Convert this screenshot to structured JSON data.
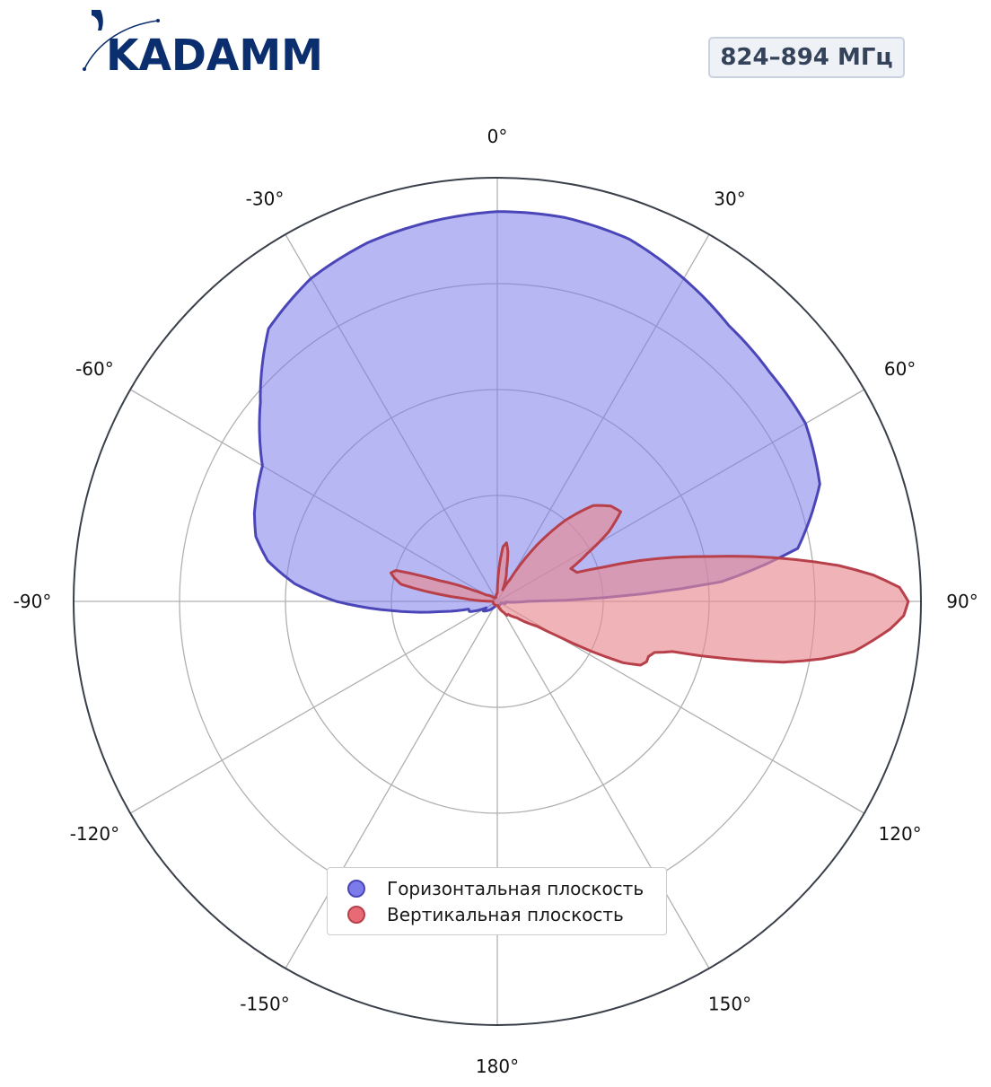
{
  "logo": {
    "text": "KADAMM",
    "color": "#0b2f6e"
  },
  "frequency_badge": "824–894 МГц",
  "colors": {
    "horizontal_fill": "#7b7bea",
    "horizontal_stroke": "#4a46b8",
    "vertical_fill": "#e88a92",
    "vertical_stroke": "#b8404a",
    "grid": "#b0b0b0",
    "outer_ring": "#3a4049"
  },
  "chart_data": {
    "type": "polar",
    "title": "",
    "angular_unit": "deg",
    "zero_location": "top",
    "direction": "clockwise",
    "angle_ticks": [
      {
        "angle": 0,
        "label": "0°"
      },
      {
        "angle": 30,
        "label": "30°"
      },
      {
        "angle": 60,
        "label": "60°"
      },
      {
        "angle": 90,
        "label": "90°"
      },
      {
        "angle": 120,
        "label": "120°"
      },
      {
        "angle": 150,
        "label": "150°"
      },
      {
        "angle": 180,
        "label": "180°"
      },
      {
        "angle": -150,
        "label": "-150°"
      },
      {
        "angle": -120,
        "label": "-120°"
      },
      {
        "angle": -90,
        "label": "-90°"
      },
      {
        "angle": -60,
        "label": "-60°"
      },
      {
        "angle": -30,
        "label": "-30°"
      }
    ],
    "radial_range": [
      0,
      1
    ],
    "radial_grid": [
      0.25,
      0.5,
      0.75,
      1.0
    ],
    "radial_tick_labels": false,
    "grid": true,
    "legend_position": "bottom-center",
    "series": [
      {
        "name": "Горизонтальная плоскость",
        "angles": [
          0,
          10,
          20,
          30,
          40,
          50,
          60,
          70,
          80,
          85,
          90,
          95,
          100,
          105,
          110,
          120,
          140,
          160,
          180,
          200,
          215,
          225,
          235,
          240,
          250,
          255,
          260,
          265,
          270,
          275,
          280,
          285,
          290,
          300,
          310,
          320,
          330,
          340,
          350,
          360
        ],
        "r": [
          0.92,
          0.92,
          0.91,
          0.88,
          0.85,
          0.84,
          0.84,
          0.81,
          0.72,
          0.53,
          0.07,
          0.02,
          0.02,
          0.02,
          0.01,
          0.01,
          0.01,
          0.01,
          0.01,
          0.01,
          0.02,
          0.03,
          0.04,
          0.03,
          0.07,
          0.07,
          0.14,
          0.25,
          0.38,
          0.48,
          0.55,
          0.59,
          0.61,
          0.64,
          0.73,
          0.84,
          0.88,
          0.9,
          0.91,
          0.92
        ]
      },
      {
        "name": "Вертикальная плоскость",
        "angles": [
          0,
          3,
          6,
          9,
          12,
          16,
          20,
          25,
          30,
          35,
          40,
          45,
          50,
          54,
          58,
          62,
          66,
          70,
          72,
          74,
          76,
          78,
          80,
          82,
          84,
          86,
          88,
          90,
          92,
          94,
          96,
          98,
          100,
          102,
          104,
          106,
          108,
          110,
          112,
          114,
          116,
          118,
          120,
          122,
          125,
          130,
          135,
          140,
          145,
          150,
          160,
          170,
          180,
          190,
          200,
          210,
          220,
          230,
          240,
          250,
          260,
          270,
          275,
          280,
          283,
          285,
          287,
          290,
          295,
          300,
          320,
          340,
          360
        ],
        "r": [
          0.02,
          0.08,
          0.13,
          0.14,
          0.12,
          0.08,
          0.06,
          0.03,
          0.06,
          0.16,
          0.25,
          0.32,
          0.35,
          0.36,
          0.31,
          0.24,
          0.19,
          0.2,
          0.26,
          0.35,
          0.43,
          0.51,
          0.61,
          0.71,
          0.81,
          0.89,
          0.95,
          0.97,
          0.96,
          0.93,
          0.89,
          0.85,
          0.78,
          0.69,
          0.56,
          0.43,
          0.39,
          0.38,
          0.38,
          0.37,
          0.33,
          0.25,
          0.16,
          0.11,
          0.09,
          0.06,
          0.05,
          0.04,
          0.04,
          0.03,
          0.02,
          0.01,
          0.01,
          0.01,
          0.01,
          0.01,
          0.01,
          0.01,
          0.01,
          0.01,
          0.01,
          0.01,
          0.08,
          0.23,
          0.25,
          0.26,
          0.25,
          0.14,
          0.06,
          0.03,
          0.01,
          0.01,
          0.02
        ]
      }
    ]
  },
  "legend": {
    "items": [
      {
        "label": "Горизонтальная плоскость",
        "marker_color": "#7b7bea",
        "marker_border": "#4a46b8"
      },
      {
        "label": "Вертикальная плоскость",
        "marker_color": "#e66b74",
        "marker_border": "#b8404a"
      }
    ]
  }
}
